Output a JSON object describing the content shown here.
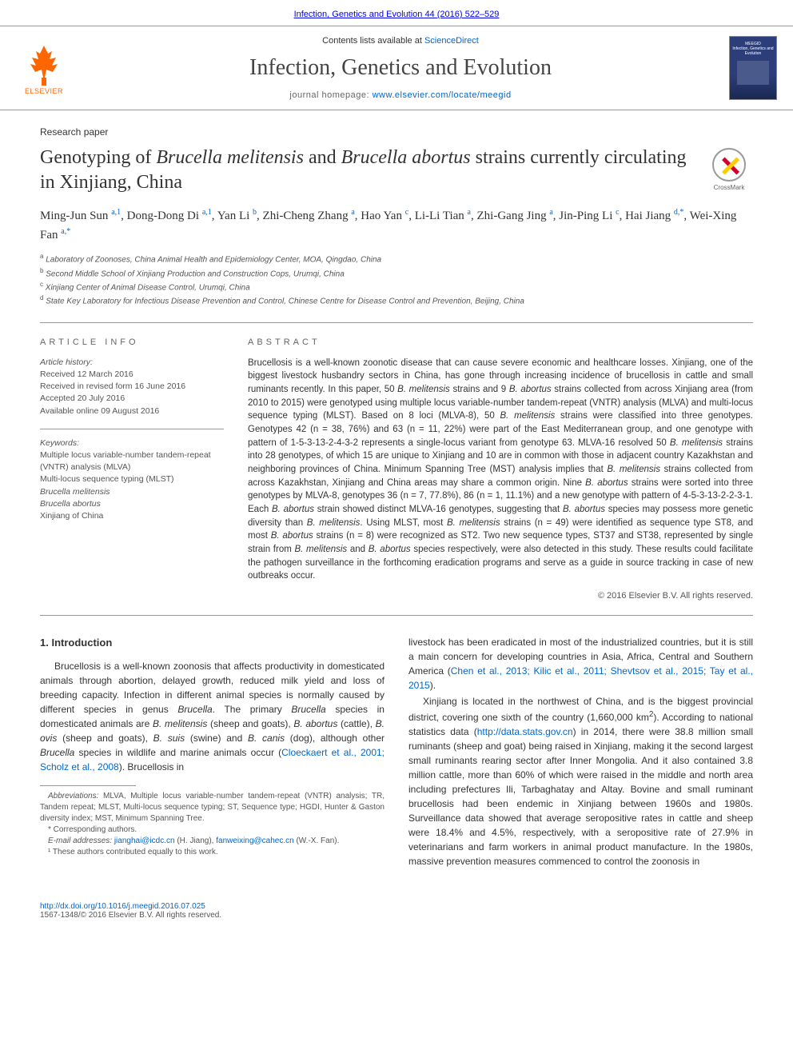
{
  "top_link": "Infection, Genetics and Evolution 44 (2016) 522–529",
  "header": {
    "contents_prefix": "Contents lists available at ",
    "contents_link": "ScienceDirect",
    "journal": "Infection, Genetics and Evolution",
    "homepage_prefix": "journal homepage: ",
    "homepage_url": "www.elsevier.com/locate/meegid",
    "publisher": "ELSEVIER",
    "cover_title": "Infection, Genetics and Evolution",
    "cover_sub": "MEEGID"
  },
  "article": {
    "type": "Research paper",
    "title_html": "Genotyping of <em>Brucella melitensis</em> and <em>Brucella abortus</em> strains currently circulating in Xinjiang, China",
    "crossmark": "CrossMark",
    "authors_html": "Ming-Jun Sun <sup>a,1</sup>, Dong-Dong Di <sup>a,1</sup>, Yan Li <sup>b</sup>, Zhi-Cheng Zhang <sup>a</sup>, Hao Yan <sup>c</sup>, Li-Li Tian <sup>a</sup>, Zhi-Gang Jing <sup>a</sup>, Jin-Ping Li <sup>c</sup>, Hai Jiang <sup>d,*</sup>, Wei-Xing Fan <sup>a,*</sup>",
    "affiliations": [
      {
        "sup": "a",
        "text": "Laboratory of Zoonoses, China Animal Health and Epidemiology Center, MOA, Qingdao, China"
      },
      {
        "sup": "b",
        "text": "Second Middle School of Xinjiang Production and Construction Cops, Urumqi, China"
      },
      {
        "sup": "c",
        "text": "Xinjiang Center of Animal Disease Control, Urumqi, China"
      },
      {
        "sup": "d",
        "text": "State Key Laboratory for Infectious Disease Prevention and Control, Chinese Centre for Disease Control and Prevention, Beijing, China"
      }
    ]
  },
  "info": {
    "label": "ARTICLE INFO",
    "history_label": "Article history:",
    "history": [
      "Received 12 March 2016",
      "Received in revised form 16 June 2016",
      "Accepted 20 July 2016",
      "Available online 09 August 2016"
    ],
    "keywords_label": "Keywords:",
    "keywords_html": "Multiple locus variable-number tandem-repeat (VNTR) analysis (MLVA)<br>Multi-locus sequence typing (MLST)<br><em>Brucella melitensis</em><br><em>Brucella abortus</em><br>Xinjiang of China"
  },
  "abstract": {
    "label": "ABSTRACT",
    "text_html": "Brucellosis is a well-known zoonotic disease that can cause severe economic and healthcare losses. Xinjiang, one of the biggest livestock husbandry sectors in China, has gone through increasing incidence of brucellosis in cattle and small ruminants recently. In this paper, 50 <em>B. melitensis</em> strains and 9 <em>B. abortus</em> strains collected from across Xinjiang area (from 2010 to 2015) were genotyped using multiple locus variable-number tandem-repeat (VNTR) analysis (MLVA) and multi-locus sequence typing (MLST). Based on 8 loci (MLVA-8), 50 <em>B. melitensis</em> strains were classified into three genotypes. Genotypes 42 (n = 38, 76%) and 63 (n = 11, 22%) were part of the East Mediterranean group, and one genotype with pattern of 1-5-3-13-2-4-3-2 represents a single-locus variant from genotype 63. MLVA-16 resolved 50 <em>B. melitensis</em> strains into 28 genotypes, of which 15 are unique to Xinjiang and 10 are in common with those in adjacent country Kazakhstan and neighboring provinces of China. Minimum Spanning Tree (MST) analysis implies that <em>B. melitensis</em> strains collected from across Kazakhstan, Xinjiang and China areas may share a common origin. Nine <em>B. abortus</em> strains were sorted into three genotypes by MLVA-8, genotypes 36 (n = 7, 77.8%), 86 (n = 1, 11.1%) and a new genotype with pattern of 4-5-3-13-2-2-3-1. Each <em>B. abortus</em> strain showed distinct MLVA-16 genotypes, suggesting that <em>B. abortus</em> species may possess more genetic diversity than <em>B. melitensis</em>. Using MLST, most <em>B. melitensis</em> strains (n = 49) were identified as sequence type ST8, and most <em>B. abortus</em> strains (n = 8) were recognized as ST2. Two new sequence types, ST37 and ST38, represented by single strain from <em>B. melitensis</em> and <em>B. abortus</em> species respectively, were also detected in this study. These results could facilitate the pathogen surveillance in the forthcoming eradication programs and serve as a guide in source tracking in case of new outbreaks occur.",
    "copyright": "© 2016 Elsevier B.V. All rights reserved."
  },
  "body": {
    "heading": "1. Introduction",
    "col1_html": "Brucellosis is a well-known zoonosis that affects productivity in domesticated animals through abortion, delayed growth, reduced milk yield and loss of breeding capacity. Infection in different animal species is normally caused by different species in genus <em>Brucella</em>. The primary <em>Brucella</em> species in domesticated animals are <em>B. melitensis</em> (sheep and goats), <em>B. abortus</em> (cattle), <em>B. ovis</em> (sheep and goats), <em>B. suis</em> (swine) and <em>B. canis</em> (dog), although other <em>Brucella</em> species in wildlife and marine animals occur (<a href='#'>Cloeckaert et al., 2001; Scholz et al., 2008</a>). Brucellosis in",
    "col2_p1_html": "livestock has been eradicated in most of the industrialized countries, but it is still a main concern for developing countries in Asia, Africa, Central and Southern America (<a href='#'>Chen et al., 2013; Kilic et al., 2011; Shevtsov et al., 2015; Tay et al., 2015</a>).",
    "col2_p2_html": "Xinjiang is located in the northwest of China, and is the biggest provincial district, covering one sixth of the country (1,660,000 km<sup>2</sup>). According to national statistics data (<a href='#'>http://data.stats.gov.cn</a>) in 2014, there were 38.8 million small ruminants (sheep and goat) being raised in Xinjiang, making it the second largest small ruminants rearing sector after Inner Mongolia. And it also contained 3.8 million cattle, more than 60% of which were raised in the middle and north area including prefectures Ili, Tarbaghatay and Altay. Bovine and small ruminant brucellosis had been endemic in Xinjiang between 1960s and 1980s. Surveillance data showed that average seropositive rates in cattle and sheep were 18.4% and 4.5%, respectively, with a seropositive rate of 27.9% in veterinarians and farm workers in animal product manufacture. In the 1980s, massive prevention measures commenced to control the zoonosis in"
  },
  "footnotes": {
    "abbrev_html": "<em>Abbreviations:</em> MLVA, Multiple locus variable-number tandem-repeat (VNTR) analysis; TR, Tandem repeat; MLST, Multi-locus sequence typing; ST, Sequence type; HGDI, Hunter & Gaston diversity index; MST, Minimum Spanning Tree.",
    "corr": "* Corresponding authors.",
    "emails_html": "<em>E-mail addresses:</em> <a href='#'>jianghai@icdc.cn</a> (H. Jiang), <a href='#'>fanweixing@cahec.cn</a> (W.-X. Fan).",
    "equal": "¹ These authors contributed equally to this work."
  },
  "footer": {
    "doi": "http://dx.doi.org/10.1016/j.meegid.2016.07.025",
    "issn": "1567-1348/© 2016 Elsevier B.V. All rights reserved."
  },
  "colors": {
    "link": "#0066cc",
    "text": "#333333",
    "elsevier_orange": "#ff6600",
    "crossmark_red": "#d4002a",
    "crossmark_yellow": "#ffcc00",
    "rule": "#999999"
  }
}
